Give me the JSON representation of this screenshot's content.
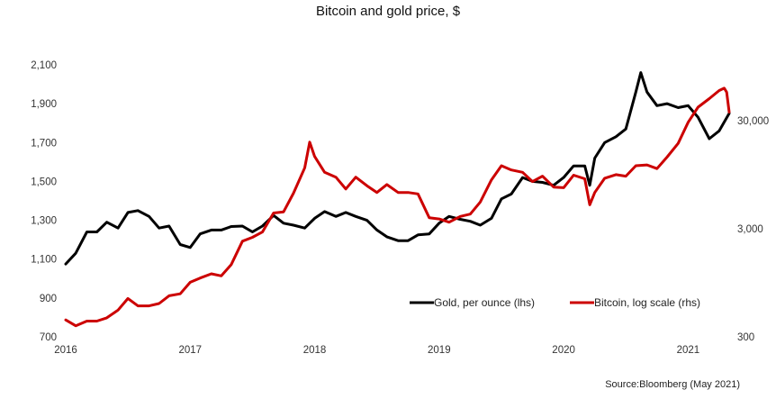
{
  "chart_data": {
    "type": "line",
    "title": "Bitcoin and gold price, $",
    "source": "Source:Bloomberg (May 2021)",
    "xlim": [
      2016.0,
      2021.33
    ],
    "x_ticks": [
      "2016",
      "2017",
      "2018",
      "2019",
      "2020",
      "2021"
    ],
    "y_left": {
      "ticks": [
        "700",
        "900",
        "1,100",
        "1,300",
        "1,500",
        "1,700",
        "1,900",
        "2,100"
      ],
      "range": [
        700,
        2150
      ],
      "scale": "linear"
    },
    "y_right": {
      "ticks": [
        "300",
        "3,000",
        "30,000"
      ],
      "range": [
        300,
        60000
      ],
      "scale": "log"
    },
    "legend_placement": "bottom-right",
    "grid": false,
    "series": [
      {
        "name": "Gold, per ounce (lhs)",
        "axis": "left",
        "color": "#000000",
        "points": [
          [
            2016.0,
            1075
          ],
          [
            2016.08,
            1130
          ],
          [
            2016.17,
            1240
          ],
          [
            2016.25,
            1240
          ],
          [
            2016.33,
            1290
          ],
          [
            2016.42,
            1260
          ],
          [
            2016.5,
            1340
          ],
          [
            2016.58,
            1350
          ],
          [
            2016.67,
            1320
          ],
          [
            2016.75,
            1260
          ],
          [
            2016.83,
            1270
          ],
          [
            2016.92,
            1175
          ],
          [
            2017.0,
            1160
          ],
          [
            2017.08,
            1230
          ],
          [
            2017.17,
            1250
          ],
          [
            2017.25,
            1250
          ],
          [
            2017.33,
            1268
          ],
          [
            2017.42,
            1270
          ],
          [
            2017.5,
            1240
          ],
          [
            2017.58,
            1270
          ],
          [
            2017.67,
            1325
          ],
          [
            2017.75,
            1285
          ],
          [
            2017.83,
            1275
          ],
          [
            2017.92,
            1260
          ],
          [
            2018.0,
            1310
          ],
          [
            2018.08,
            1345
          ],
          [
            2018.17,
            1320
          ],
          [
            2018.25,
            1340
          ],
          [
            2018.33,
            1320
          ],
          [
            2018.42,
            1300
          ],
          [
            2018.5,
            1250
          ],
          [
            2018.58,
            1215
          ],
          [
            2018.67,
            1195
          ],
          [
            2018.75,
            1195
          ],
          [
            2018.83,
            1225
          ],
          [
            2018.92,
            1230
          ],
          [
            2019.0,
            1285
          ],
          [
            2019.08,
            1320
          ],
          [
            2019.17,
            1305
          ],
          [
            2019.25,
            1295
          ],
          [
            2019.33,
            1275
          ],
          [
            2019.42,
            1310
          ],
          [
            2019.5,
            1410
          ],
          [
            2019.58,
            1435
          ],
          [
            2019.67,
            1520
          ],
          [
            2019.75,
            1500
          ],
          [
            2019.83,
            1495
          ],
          [
            2019.92,
            1480
          ],
          [
            2020.0,
            1520
          ],
          [
            2020.08,
            1580
          ],
          [
            2020.17,
            1580
          ],
          [
            2020.21,
            1480
          ],
          [
            2020.25,
            1620
          ],
          [
            2020.33,
            1700
          ],
          [
            2020.42,
            1730
          ],
          [
            2020.5,
            1770
          ],
          [
            2020.58,
            1960
          ],
          [
            2020.62,
            2060
          ],
          [
            2020.67,
            1960
          ],
          [
            2020.75,
            1890
          ],
          [
            2020.83,
            1900
          ],
          [
            2020.92,
            1880
          ],
          [
            2021.0,
            1890
          ],
          [
            2021.08,
            1830
          ],
          [
            2021.17,
            1720
          ],
          [
            2021.25,
            1760
          ],
          [
            2021.33,
            1850
          ]
        ]
      },
      {
        "name": "Bitcoin, log scale (rhs)",
        "axis": "right",
        "color": "#cc0000",
        "points": [
          [
            2016.0,
            430
          ],
          [
            2016.08,
            380
          ],
          [
            2016.17,
            420
          ],
          [
            2016.25,
            420
          ],
          [
            2016.33,
            450
          ],
          [
            2016.42,
            530
          ],
          [
            2016.5,
            680
          ],
          [
            2016.58,
            580
          ],
          [
            2016.67,
            580
          ],
          [
            2016.75,
            610
          ],
          [
            2016.83,
            720
          ],
          [
            2016.92,
            750
          ],
          [
            2017.0,
            960
          ],
          [
            2017.08,
            1050
          ],
          [
            2017.17,
            1150
          ],
          [
            2017.25,
            1100
          ],
          [
            2017.33,
            1400
          ],
          [
            2017.42,
            2300
          ],
          [
            2017.5,
            2500
          ],
          [
            2017.58,
            2800
          ],
          [
            2017.67,
            4200
          ],
          [
            2017.75,
            4300
          ],
          [
            2017.83,
            6400
          ],
          [
            2017.92,
            11000
          ],
          [
            2017.96,
            19000
          ],
          [
            2018.0,
            14000
          ],
          [
            2018.08,
            10000
          ],
          [
            2018.17,
            9000
          ],
          [
            2018.25,
            7000
          ],
          [
            2018.33,
            9000
          ],
          [
            2018.42,
            7500
          ],
          [
            2018.5,
            6500
          ],
          [
            2018.58,
            7700
          ],
          [
            2018.67,
            6500
          ],
          [
            2018.75,
            6500
          ],
          [
            2018.83,
            6300
          ],
          [
            2018.92,
            3800
          ],
          [
            2019.0,
            3700
          ],
          [
            2019.08,
            3450
          ],
          [
            2019.17,
            3900
          ],
          [
            2019.25,
            4100
          ],
          [
            2019.33,
            5300
          ],
          [
            2019.42,
            8500
          ],
          [
            2019.5,
            11500
          ],
          [
            2019.58,
            10500
          ],
          [
            2019.67,
            10000
          ],
          [
            2019.75,
            8200
          ],
          [
            2019.83,
            9200
          ],
          [
            2019.92,
            7300
          ],
          [
            2020.0,
            7200
          ],
          [
            2020.08,
            9400
          ],
          [
            2020.17,
            8700
          ],
          [
            2020.21,
            5000
          ],
          [
            2020.25,
            6500
          ],
          [
            2020.33,
            8800
          ],
          [
            2020.42,
            9500
          ],
          [
            2020.5,
            9200
          ],
          [
            2020.58,
            11500
          ],
          [
            2020.67,
            11700
          ],
          [
            2020.75,
            10800
          ],
          [
            2020.83,
            13800
          ],
          [
            2020.92,
            18500
          ],
          [
            2021.0,
            29000
          ],
          [
            2021.08,
            40000
          ],
          [
            2021.17,
            48000
          ],
          [
            2021.25,
            57000
          ],
          [
            2021.29,
            60000
          ],
          [
            2021.31,
            55000
          ],
          [
            2021.33,
            36000
          ]
        ]
      }
    ]
  }
}
